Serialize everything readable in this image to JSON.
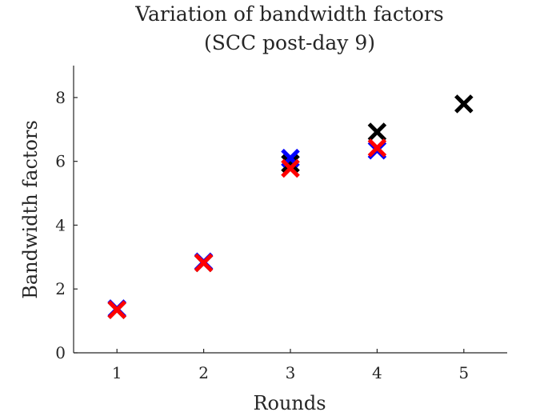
{
  "chart_data": {
    "type": "scatter",
    "title": "Variation of bandwidth factors",
    "subtitle": "(SCC post-day 9)",
    "xlabel": "Rounds",
    "ylabel": "Bandwidth factors",
    "xlim": [
      0.5,
      5.5
    ],
    "ylim": [
      0,
      9
    ],
    "xticks": [
      1,
      2,
      3,
      4,
      5
    ],
    "yticks": [
      0,
      2,
      4,
      6,
      8
    ],
    "grid": false,
    "legend": "none",
    "marker": "x",
    "series": [
      {
        "color": "#000000",
        "points": [
          [
            1,
            1.35
          ],
          [
            2,
            2.82
          ],
          [
            3,
            5.93
          ],
          [
            4,
            6.92
          ],
          [
            5,
            7.8
          ]
        ]
      },
      {
        "color": "#0000ff",
        "points": [
          [
            1,
            1.38
          ],
          [
            2,
            2.85
          ],
          [
            3,
            6.1
          ],
          [
            4,
            6.35
          ]
        ]
      },
      {
        "color": "#ff0000",
        "points": [
          [
            1,
            1.35
          ],
          [
            2,
            2.82
          ],
          [
            3,
            5.78
          ],
          [
            4,
            6.42
          ]
        ]
      }
    ]
  }
}
